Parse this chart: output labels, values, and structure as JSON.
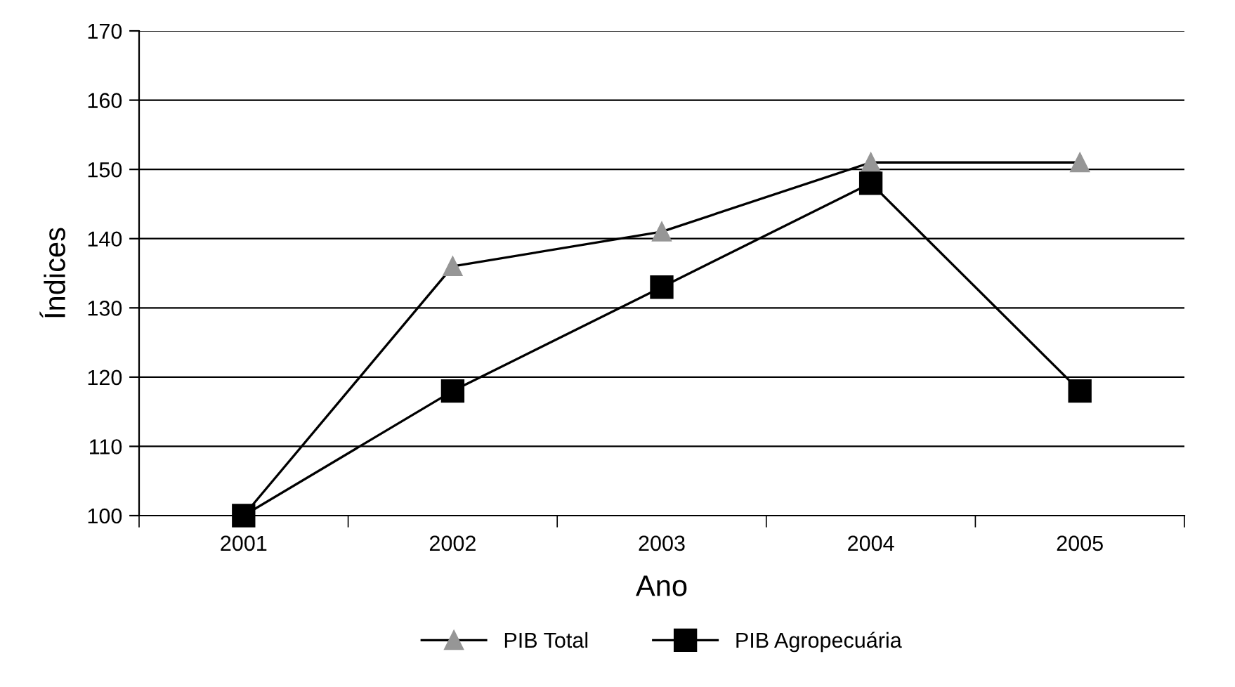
{
  "chart_data": {
    "type": "line",
    "xlabel": "Ano",
    "ylabel": "Índices",
    "categories": [
      "2001",
      "2002",
      "2003",
      "2004",
      "2005"
    ],
    "series": [
      {
        "name": "PIB Total",
        "color": "#969696",
        "marker": "triangle",
        "values": [
          100,
          136,
          141,
          151,
          151
        ]
      },
      {
        "name": "PIB Agropecuária",
        "color": "#000000",
        "marker": "square",
        "values": [
          100,
          118,
          133,
          148,
          118
        ]
      }
    ],
    "ylim": [
      100,
      170
    ],
    "yticks": [
      100,
      110,
      120,
      130,
      140,
      150,
      160,
      170
    ],
    "grid": "y",
    "legend": "bottom",
    "line_style": "solid"
  }
}
